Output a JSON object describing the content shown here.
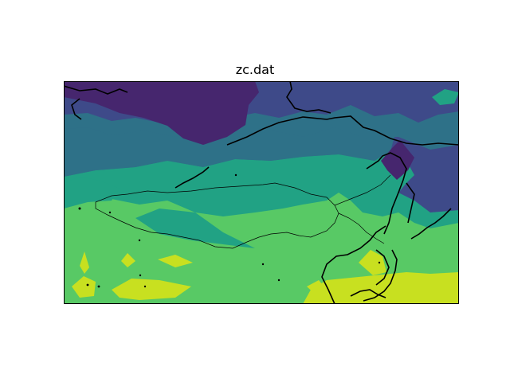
{
  "title": "zc.dat",
  "chart_data": {
    "type": "heatmap",
    "title": "zc.dat",
    "xlabel": "",
    "ylabel": "",
    "projection": "equirectangular",
    "colormap": "viridis",
    "levels": [
      {
        "level": 1,
        "color": "#46266e"
      },
      {
        "level": 2,
        "color": "#3e4a89"
      },
      {
        "level": 3,
        "color": "#2e7188"
      },
      {
        "level": 4,
        "color": "#21a284"
      },
      {
        "level": 5,
        "color": "#58c965"
      },
      {
        "level": 6,
        "color": "#c8e020"
      }
    ],
    "features": [
      "coastlines",
      "country-borders"
    ],
    "grid": false,
    "colorbar": false
  }
}
